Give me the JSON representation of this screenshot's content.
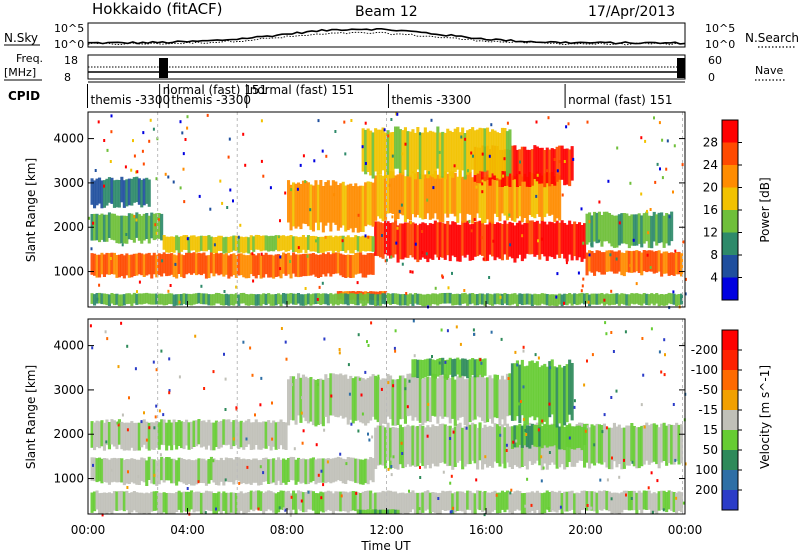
{
  "header": {
    "station": "Hokkaido (fitACF)",
    "beam": "Beam 12",
    "date": "17/Apr/2013"
  },
  "aux_panels": {
    "nsky_label": "N.Sky",
    "nsky_ticks": [
      "10^5",
      "10^0"
    ],
    "nsearch_label": "N.Search",
    "freq_label": "Freq.",
    "freq_unit": "[MHz]",
    "freq_ticks": [
      "18",
      "8"
    ],
    "nave_ticks": [
      "60",
      "0"
    ],
    "nave_label": "Nave",
    "cpid_label": "CPID",
    "cpid_segments": [
      {
        "text": "themis -3300",
        "hour": 0.1
      },
      {
        "text": "normal (fast) 151",
        "hour": 3.0
      },
      {
        "text": "themis -3300",
        "hour": 3.35
      },
      {
        "text": "normal (fast) 151",
        "hour": 6.5
      },
      {
        "text": "themis -3300",
        "hour": 12.2
      },
      {
        "text": "normal (fast) 151",
        "hour": 19.3
      }
    ]
  },
  "chart_data": [
    {
      "type": "heatmap",
      "name": "power",
      "xlabel": "",
      "ylabel": "Slant Range [km]",
      "xlim": [
        0,
        24
      ],
      "ylim": [
        200,
        4600
      ],
      "yticks": [
        1000,
        2000,
        3000,
        4000
      ],
      "colorbar": {
        "label": "Power [dB]",
        "ticks": [
          "4",
          "8",
          "12",
          "16",
          "20",
          "24",
          "28"
        ],
        "colors": [
          "#0000e0",
          "#1f4f9e",
          "#2e8a6a",
          "#6fbf3a",
          "#f2c200",
          "#ff8c00",
          "#ff4a00",
          "#ff0000"
        ]
      },
      "regions": [
        {
          "t": [
            0.1,
            11.5
          ],
          "r": [
            900,
            1400
          ],
          "level": 6
        },
        {
          "t": [
            11.5,
            20.0
          ],
          "r": [
            1300,
            2100
          ],
          "level": 7
        },
        {
          "t": [
            20.0,
            23.9
          ],
          "r": [
            950,
            1450
          ],
          "level": 6
        },
        {
          "t": [
            0.1,
            3.0
          ],
          "r": [
            1700,
            2300
          ],
          "level": 3
        },
        {
          "t": [
            0.1,
            2.5
          ],
          "r": [
            2500,
            3100
          ],
          "level": 2
        },
        {
          "t": [
            3.0,
            11.5
          ],
          "r": [
            1450,
            1800
          ],
          "level": 4
        },
        {
          "t": [
            8.0,
            11.5
          ],
          "r": [
            2000,
            3000
          ],
          "level": 5
        },
        {
          "t": [
            11.5,
            19.0
          ],
          "r": [
            2200,
            3200
          ],
          "level": 5
        },
        {
          "t": [
            15.5,
            19.5
          ],
          "r": [
            3000,
            3800
          ],
          "level": 7
        },
        {
          "t": [
            20.0,
            23.5
          ],
          "r": [
            1600,
            2300
          ],
          "level": 3
        },
        {
          "t": [
            10.0,
            12.0
          ],
          "r": [
            350,
            550
          ],
          "level": 6
        },
        {
          "t": [
            0.1,
            23.9
          ],
          "r": [
            250,
            500
          ],
          "level": 3
        },
        {
          "t": [
            11.0,
            17.0
          ],
          "r": [
            3200,
            4200
          ],
          "level": 4
        }
      ]
    },
    {
      "type": "heatmap",
      "name": "velocity",
      "xlabel": "Time UT",
      "ylabel": "Slant Range [km]",
      "xlim": [
        0,
        24
      ],
      "ylim": [
        200,
        4600
      ],
      "yticks": [
        1000,
        2000,
        3000,
        4000
      ],
      "xticks": [
        "00:00",
        "04:00",
        "08:00",
        "12:00",
        "16:00",
        "20:00",
        "00:00"
      ],
      "colorbar": {
        "label": "Velocity [m s^-1]",
        "ticks": [
          "200",
          "100",
          "50",
          "15",
          "-15",
          "-50",
          "-100",
          "-200"
        ],
        "colors": [
          "#2b3cc8",
          "#2e6fa6",
          "#2e8a5a",
          "#66cc33",
          "#c0c0b8",
          "#f2a000",
          "#ff6a00",
          "#ff2200",
          "#ff0000"
        ]
      },
      "regions": [
        {
          "t": [
            0.1,
            11.5
          ],
          "r": [
            900,
            1450
          ],
          "level": 4
        },
        {
          "t": [
            0.1,
            8.0
          ],
          "r": [
            1700,
            2300
          ],
          "level": 4
        },
        {
          "t": [
            11.5,
            23.9
          ],
          "r": [
            1300,
            2200
          ],
          "level": 4
        },
        {
          "t": [
            8.0,
            17.0
          ],
          "r": [
            2300,
            3300
          ],
          "level": 4
        },
        {
          "t": [
            17.0,
            20.0
          ],
          "r": [
            1700,
            2200
          ],
          "level": 3
        },
        {
          "t": [
            17.0,
            19.5
          ],
          "r": [
            2300,
            3600
          ],
          "level": 3
        },
        {
          "t": [
            13.0,
            16.0
          ],
          "r": [
            3300,
            3700
          ],
          "level": 3
        },
        {
          "t": [
            0.1,
            23.9
          ],
          "r": [
            250,
            700
          ],
          "level": 4
        },
        {
          "t": [
            10.8,
            12.5
          ],
          "r": [
            200,
            300
          ],
          "level": 3
        }
      ]
    }
  ]
}
